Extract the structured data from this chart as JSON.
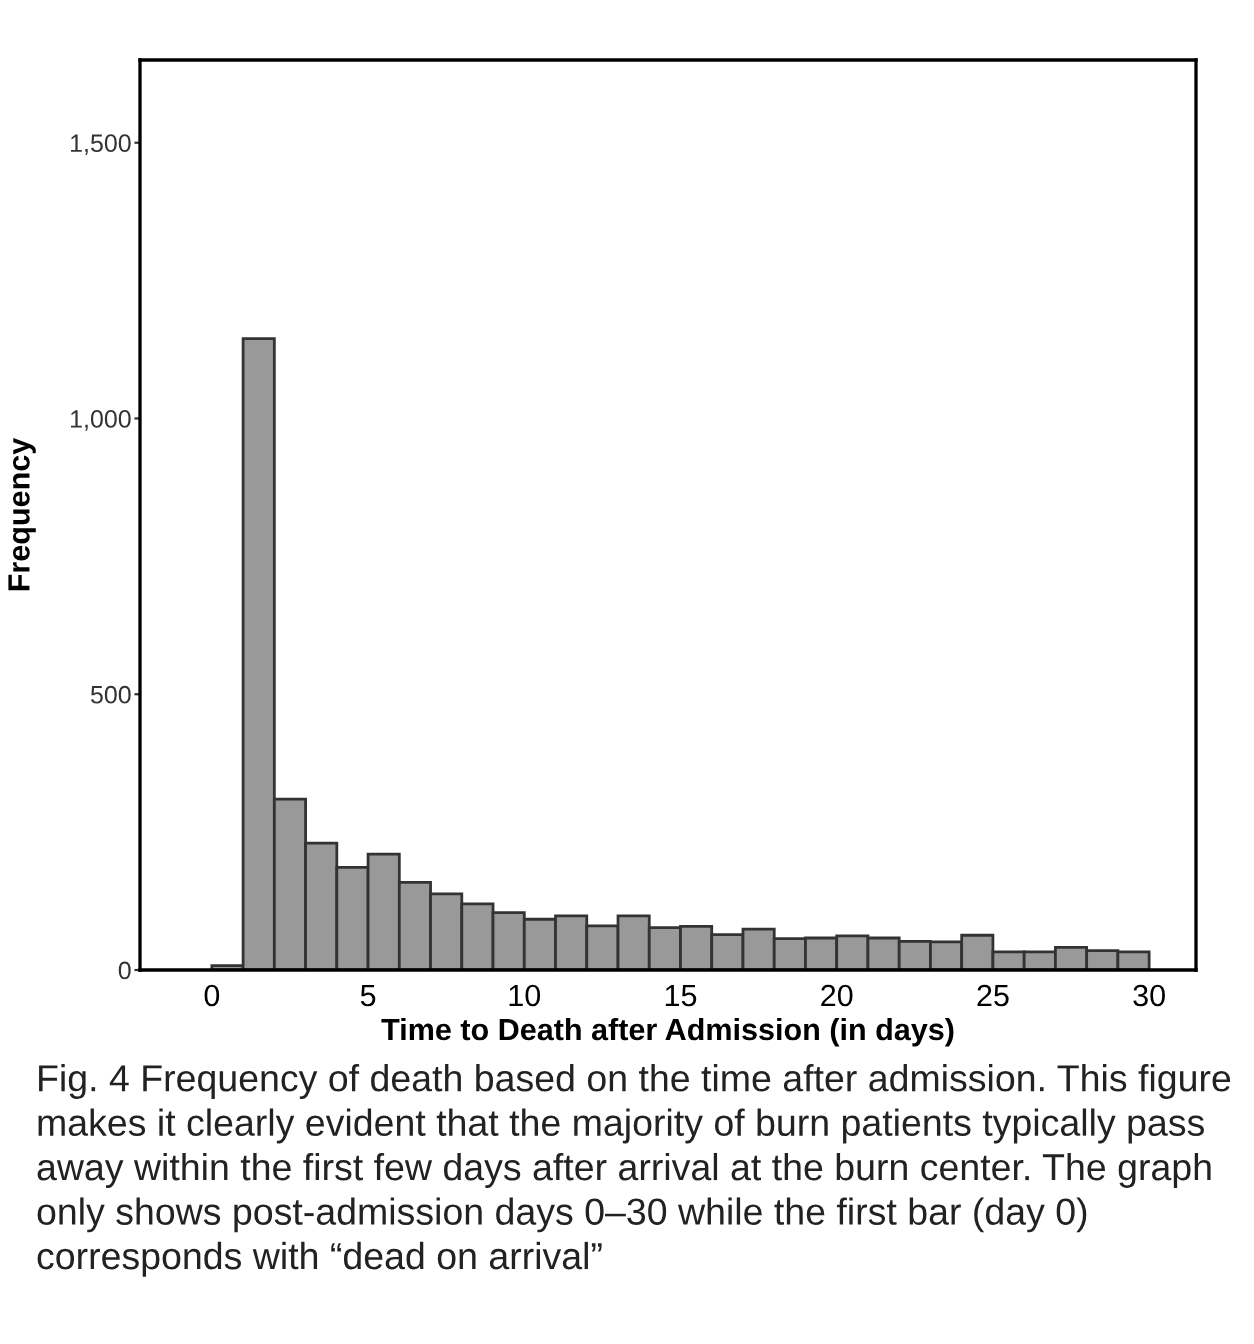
{
  "chart_data": {
    "type": "histogram",
    "xlabel": "Time to Death after Admission (in days)",
    "ylabel": "Frequency",
    "bins": [
      0,
      1,
      2,
      3,
      4,
      5,
      6,
      7,
      8,
      9,
      10,
      11,
      12,
      13,
      14,
      15,
      16,
      17,
      18,
      19,
      20,
      21,
      22,
      23,
      24,
      25,
      26,
      27,
      28,
      29,
      30
    ],
    "values": [
      8,
      1145,
      310,
      230,
      186,
      210,
      159,
      138,
      120,
      104,
      92,
      98,
      80,
      98,
      77,
      79,
      64,
      74,
      57,
      58,
      62,
      58,
      52,
      51,
      63,
      33,
      33,
      41,
      35,
      33
    ],
    "color": "#999999",
    "xlim": [
      -2.3,
      31.5
    ],
    "xticks": [
      0,
      5,
      10,
      15,
      20,
      25,
      30
    ],
    "ylim": [
      0,
      1650
    ],
    "yticks": [
      {
        "value": 0,
        "label": "0"
      },
      {
        "value": 500,
        "label": "500"
      },
      {
        "value": 1000,
        "label": "1,000"
      },
      {
        "value": 1500,
        "label": "1,500"
      }
    ],
    "grid": false,
    "annotations": [
      "Fig. 4 Frequency of death based on the time after admission. This figure makes it clearly evident that the majority of burn patients typically pass away within the first few days after arrival at the burn center. The graph only shows post-admission days 0–30 while the first bar (day 0) corresponds with “dead on arrival”"
    ]
  }
}
